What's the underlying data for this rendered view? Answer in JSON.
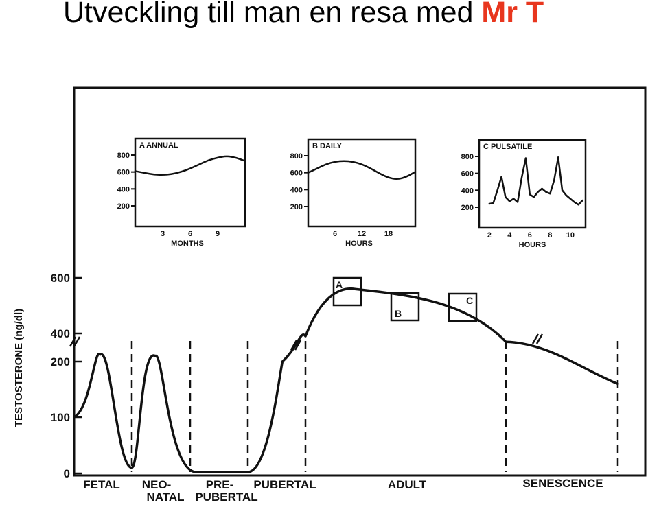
{
  "slide": {
    "title": "Utveckling till man en resa med",
    "title_accent": "Mr T",
    "accent_color": "#e8361e"
  },
  "colors": {
    "ink": "#111111",
    "background": "#ffffff"
  },
  "chart_data": [
    {
      "type": "line",
      "ylabel": "TESTOSTERONE (ng/dl)",
      "y_ticks": [
        "0",
        "100",
        "200",
        "400",
        "600"
      ],
      "y_scale": "broken",
      "y_break": [
        200,
        400
      ],
      "phases": [
        "FETAL",
        "NEO-",
        "NATAL",
        "PRE-",
        "PUBERTAL",
        "PUBERTAL",
        "ADULT",
        "SENESCENCE"
      ],
      "phase_sequence": [
        "fetal",
        "neonatal",
        "prepubertal",
        "pubertal",
        "adult",
        "senescence"
      ],
      "series": [
        {
          "points": [
            {
              "phase": "fetal",
              "pos": 0.0,
              "value": 100
            },
            {
              "phase": "fetal",
              "pos": 0.45,
              "value": 250
            },
            {
              "phase": "fetal",
              "pos": 1.0,
              "value": 10
            },
            {
              "phase": "neonatal",
              "pos": 0.4,
              "value": 240
            },
            {
              "phase": "neonatal",
              "pos": 1.0,
              "value": 0
            },
            {
              "phase": "prepubertal",
              "pos": 1.0,
              "value": 0
            },
            {
              "phase": "pubertal",
              "pos": 0.6,
              "value": 200
            },
            {
              "phase": "pubertal",
              "pos": 1.0,
              "value": 380
            },
            {
              "phase": "adult",
              "pos": 0.25,
              "value": 520
            },
            {
              "phase": "adult",
              "pos": 1.0,
              "value": 340
            },
            {
              "phase": "senescence",
              "pos": 1.0,
              "value": 160
            }
          ]
        }
      ],
      "markers": [
        {
          "label": "A",
          "phase": "adult",
          "pos": 0.2,
          "value": 480
        },
        {
          "label": "B",
          "phase": "adult",
          "pos": 0.5,
          "value": 390
        },
        {
          "label": "C",
          "phase": "adult",
          "pos": 0.8,
          "value": 380
        }
      ]
    },
    {
      "type": "line",
      "title": "A ANNUAL",
      "xlabel": "MONTHS",
      "x_ticks": [
        "3",
        "6",
        "9"
      ],
      "y_ticks": [
        "800",
        "600",
        "400",
        "200"
      ],
      "ylim": [
        200,
        800
      ],
      "x": [
        0,
        1,
        2,
        3,
        4,
        5,
        6,
        7,
        8,
        9,
        10,
        11,
        12
      ],
      "values": [
        610,
        590,
        570,
        565,
        575,
        600,
        640,
        690,
        740,
        770,
        790,
        770,
        730
      ]
    },
    {
      "type": "line",
      "title": "B DAILY",
      "xlabel": "HOURS",
      "x_ticks": [
        "6",
        "12",
        "18"
      ],
      "y_ticks": [
        "800",
        "600",
        "400",
        "200"
      ],
      "ylim": [
        200,
        800
      ],
      "x": [
        0,
        2,
        4,
        6,
        8,
        10,
        12,
        14,
        16,
        18,
        20,
        22,
        24
      ],
      "values": [
        600,
        650,
        700,
        730,
        740,
        730,
        700,
        650,
        590,
        540,
        520,
        550,
        610
      ]
    },
    {
      "type": "line",
      "title": "C PULSATILE",
      "xlabel": "HOURS",
      "x_ticks": [
        "2",
        "4",
        "6",
        "8",
        "10"
      ],
      "y_ticks": [
        "800",
        "600",
        "400",
        "200"
      ],
      "ylim": [
        200,
        800
      ],
      "x": [
        2,
        2.4,
        2.8,
        3.2,
        3.6,
        4.0,
        4.4,
        4.8,
        5.2,
        5.6,
        6.0,
        6.4,
        6.8,
        7.2,
        7.6,
        8.0,
        8.4,
        8.8,
        9.2,
        9.6,
        10.0,
        10.4,
        10.8,
        11.2
      ],
      "values": [
        240,
        250,
        400,
        560,
        320,
        270,
        300,
        260,
        550,
        780,
        350,
        320,
        380,
        420,
        380,
        360,
        520,
        790,
        400,
        340,
        300,
        260,
        230,
        280
      ]
    }
  ]
}
